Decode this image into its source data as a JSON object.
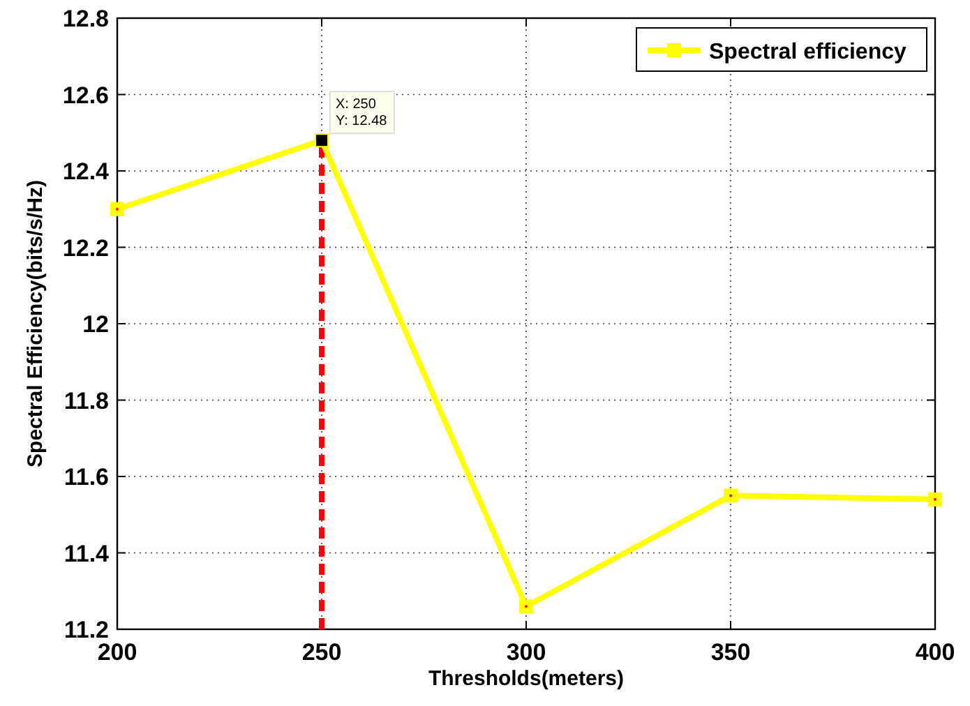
{
  "chart_data": {
    "type": "line",
    "xlabel": "Thresholds(meters)",
    "ylabel": "Spectral Efficiency(bits/s/Hz)",
    "x": [
      200,
      250,
      300,
      350,
      400
    ],
    "series": [
      {
        "name": "Spectral efficiency",
        "color": "#ffff00",
        "values": [
          12.3,
          12.48,
          11.26,
          11.55,
          11.54
        ]
      }
    ],
    "xlim": [
      200,
      400
    ],
    "xticks": [
      200,
      250,
      300,
      350,
      400
    ],
    "ylim": [
      11.2,
      12.8
    ],
    "yticks": [
      11.2,
      11.4,
      11.6,
      11.8,
      12,
      12.2,
      12.4,
      12.6,
      12.8
    ],
    "ref_lines": [
      {
        "axis": "x",
        "value": 250,
        "color": "#ff0000",
        "line_style": "dashed"
      }
    ],
    "annotations": [
      {
        "text": "X: 250\nY: 12.48",
        "x": 250,
        "y": 12.48
      }
    ],
    "grid": true,
    "legend": "top right",
    "marker": "square",
    "line_style": "solid"
  }
}
